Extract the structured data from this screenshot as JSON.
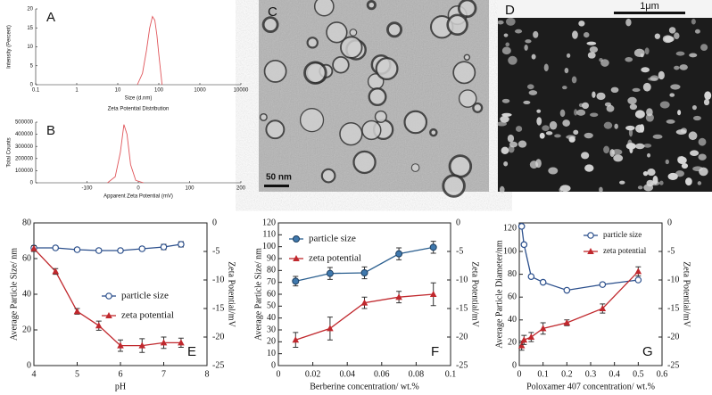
{
  "chart_data": [
    {
      "type": "line",
      "label": "A",
      "x_label": "Size (d.nm)",
      "y_label": "Intensity (Percent)",
      "xscale": "log",
      "xlim": [
        0.1,
        10000
      ],
      "xticks": [
        0.1,
        1,
        10,
        100,
        1000,
        10000
      ],
      "ylim": [
        0,
        20
      ],
      "yticks": [
        0,
        5,
        10,
        15,
        20
      ],
      "x": [
        30,
        40,
        50,
        60,
        70,
        80,
        90,
        100,
        120
      ],
      "series": [
        {
          "color": "#e0555a",
          "values": [
            0,
            3,
            9,
            15,
            18,
            17,
            13,
            8,
            0
          ]
        }
      ]
    },
    {
      "type": "line",
      "label": "B",
      "title": "Zeta Potential Distribution",
      "x_label": "Apparent Zeta Potential (mV)",
      "y_label": "Total Counts",
      "xlim": [
        -200,
        200
      ],
      "xticks": [
        -100,
        0,
        100,
        200
      ],
      "ylim": [
        0,
        500000
      ],
      "yticks": [
        0,
        100000,
        200000,
        300000,
        400000,
        500000
      ],
      "x": [
        -60,
        -45,
        -35,
        -28,
        -22,
        -15,
        -5,
        10
      ],
      "series": [
        {
          "color": "#e0555a",
          "values": [
            0,
            50000,
            250000,
            480000,
            400000,
            150000,
            20000,
            0
          ]
        }
      ]
    },
    {
      "type": "line",
      "label": "E",
      "x_label": "pH",
      "y_label": "Average Particle Size/ nm",
      "y2_label": "Zeta Potential/mV",
      "xlim": [
        4,
        8
      ],
      "xticks": [
        4,
        5,
        6,
        7,
        8
      ],
      "ylim": [
        0,
        80
      ],
      "yticks": [
        0,
        20,
        40,
        60,
        80
      ],
      "y2lim": [
        -25,
        0
      ],
      "y2ticks": [
        -25,
        -20,
        -15,
        -10,
        -5,
        0
      ],
      "legend": "lower right",
      "x": [
        4,
        4.5,
        5,
        5.5,
        6,
        6.5,
        7,
        7.4
      ],
      "series": [
        {
          "name": "particle size",
          "color": "#2b4f8c",
          "marker": "open-circle",
          "values": [
            66,
            66,
            65,
            64.5,
            64.5,
            65.5,
            66.5,
            68
          ],
          "errors": [
            1,
            1,
            1,
            1,
            1,
            1,
            1.5,
            1.5
          ]
        },
        {
          "name": "zeta potential",
          "color": "#c0282d",
          "marker": "triangle",
          "axis": "y2",
          "values": [
            -4.5,
            -8.5,
            -15.5,
            -18,
            -21.5,
            -21.5,
            -21,
            -21
          ],
          "errors": [
            0.5,
            0.5,
            0.5,
            0.8,
            1,
            1.2,
            1,
            0.8
          ]
        }
      ]
    },
    {
      "type": "line",
      "label": "F",
      "x_label": "Berberine concentration/ wt.%",
      "y_label": "Average Particle Size/ nm",
      "y2_label": "Zeta Potential/mV",
      "xlim": [
        0,
        0.1
      ],
      "xticks": [
        0,
        0.02,
        0.04,
        0.06,
        0.08,
        0.1
      ],
      "ylim": [
        0,
        120
      ],
      "yticks": [
        0,
        10,
        20,
        30,
        40,
        50,
        60,
        70,
        80,
        90,
        100,
        110,
        120
      ],
      "y2lim": [
        -25,
        0
      ],
      "y2ticks": [
        -25,
        -20,
        -15,
        -10,
        -5,
        0
      ],
      "legend": "upper left",
      "x": [
        0.01,
        0.03,
        0.05,
        0.07,
        0.09
      ],
      "series": [
        {
          "name": "particle size",
          "color": "#2b5f8f",
          "marker": "circle",
          "values": [
            71,
            77.5,
            78,
            94,
            99.5
          ],
          "errors": [
            4,
            5,
            5,
            5,
            5
          ]
        },
        {
          "name": "zeta potential",
          "color": "#c0282d",
          "marker": "triangle",
          "axis": "y2",
          "values": [
            -20.5,
            -18.5,
            -14,
            -13,
            -12.5
          ],
          "errors": [
            1.3,
            2,
            1,
            1,
            2
          ]
        }
      ]
    },
    {
      "type": "line",
      "label": "G",
      "x_label": "Poloxamer 407 concentration/ wt.%",
      "y_label": "Average Particle Diameter/nm",
      "y2_label": "Zeta Potential/mV",
      "xlim": [
        0,
        0.6
      ],
      "xticks": [
        0,
        0.1,
        0.2,
        0.3,
        0.4,
        0.5,
        0.6
      ],
      "ylim": [
        0,
        125
      ],
      "yticks": [
        0,
        20,
        40,
        60,
        80,
        100,
        120
      ],
      "y2lim": [
        -25,
        0
      ],
      "y2ticks": [
        -25,
        -20,
        -15,
        -10,
        -5,
        0
      ],
      "legend": "upper right",
      "x": [
        0.01,
        0.02,
        0.05,
        0.1,
        0.2,
        0.35,
        0.5
      ],
      "series": [
        {
          "name": "particle size",
          "color": "#2b4f8c",
          "marker": "open-circle",
          "values": [
            122,
            106,
            78,
            73,
            66,
            71,
            75
          ],
          "errors": [
            1,
            1,
            1,
            1,
            1,
            1,
            1
          ]
        },
        {
          "name": "zeta potential",
          "color": "#c0282d",
          "marker": "triangle",
          "axis": "y2",
          "values": [
            -21.5,
            -20.5,
            -20,
            -18.5,
            -17.5,
            -15,
            -8.5
          ],
          "errors": [
            0.8,
            0.8,
            0.8,
            1,
            0.5,
            0.8,
            0.8
          ]
        }
      ]
    }
  ],
  "images": [
    {
      "label": "C",
      "scale_bar": "50 nm"
    },
    {
      "label": "D",
      "scale_bar": "1μm"
    }
  ]
}
